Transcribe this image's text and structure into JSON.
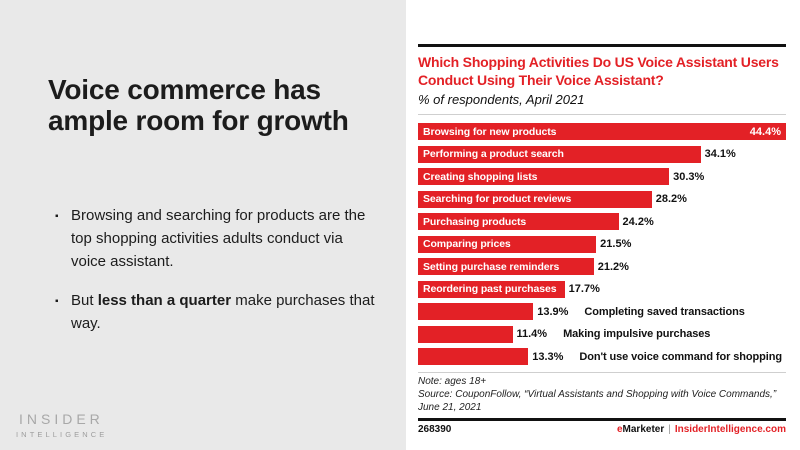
{
  "slide": {
    "left": {
      "title": "Voice commerce has ample room for growth",
      "bullet_char": "▪",
      "bullets": [
        {
          "text": "Browsing and searching for products are the top shopping activities adults conduct via voice assistant."
        },
        {
          "pre": "But ",
          "bold": "less than a quarter",
          "post": " make purchases that way."
        }
      ],
      "logo": {
        "line1": "INSIDER",
        "line2": "INTELLIGENCE"
      }
    }
  },
  "chart_data": {
    "type": "bar",
    "orientation": "horizontal",
    "title": "Which Shopping Activities Do US Voice Assistant Users Conduct Using Their Voice Assistant?",
    "subtitle": "% of respondents, April 2021",
    "categories": [
      "Browsing for new products",
      "Performing a product search",
      "Creating shopping lists",
      "Searching for product reviews",
      "Purchasing products",
      "Comparing prices",
      "Setting purchase reminders",
      "Reordering past purchases",
      "Completing saved transactions",
      "Making impulsive purchases",
      "Don't use voice command for shopping"
    ],
    "values": [
      44.4,
      34.1,
      30.3,
      28.2,
      24.2,
      21.5,
      21.2,
      17.7,
      13.9,
      11.4,
      13.3
    ],
    "value_suffix": "%",
    "xlim": [
      0,
      44.4
    ],
    "grid": "off",
    "legend": "none",
    "bar_color": "#e32126",
    "label_inside_count": 8,
    "first_bar_value_inside": true,
    "note_lines": [
      "Note: ages 18+",
      "Source: CouponFollow, “Virtual Assistants and Shopping with Voice Commands,” June 21, 2021"
    ],
    "chart_id": "268390",
    "branding": {
      "e": "e",
      "marketer": "Marketer",
      "separator": "|",
      "site": "InsiderIntelligence.com"
    }
  },
  "colors": {
    "accent_red": "#e32126",
    "left_panel_bg": "#e9e9e9",
    "logo_gray": "#a8a8a8",
    "rule_black": "#111111",
    "rule_light_gray": "#cfcfcf"
  }
}
